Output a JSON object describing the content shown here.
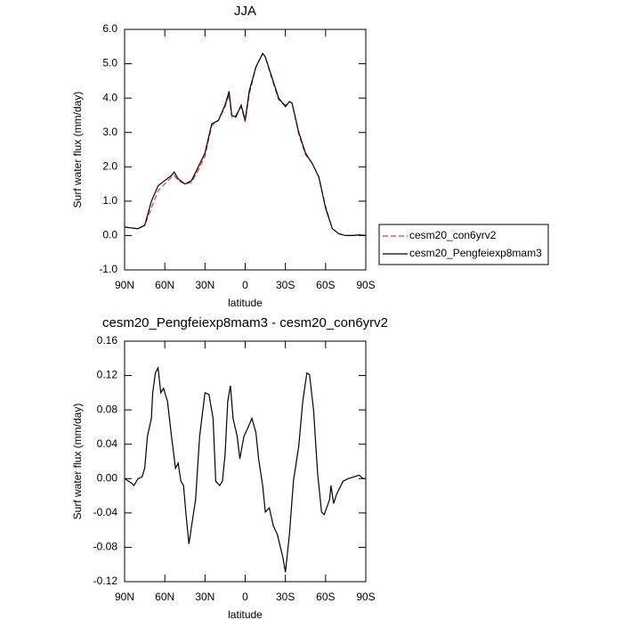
{
  "chart_data": [
    {
      "type": "line",
      "title": "JJA",
      "x_label": "latitude",
      "y_label": "Surf water flux (mm/day)",
      "xlim": [
        90,
        -90
      ],
      "ylim": [
        -1.0,
        6.0
      ],
      "xticks": [
        {
          "value": 90,
          "label": "90N"
        },
        {
          "value": 60,
          "label": "60N"
        },
        {
          "value": 30,
          "label": "30N"
        },
        0,
        {
          "value": -30,
          "label": "30S"
        },
        {
          "value": -60,
          "label": "60S"
        },
        {
          "value": -90,
          "label": "90S"
        }
      ],
      "yticks": [
        {
          "value": -1,
          "label": "-1.0"
        },
        {
          "value": 0,
          "label": "0.0"
        },
        {
          "value": 1,
          "label": "1.0"
        },
        {
          "value": 2,
          "label": "2.0"
        },
        {
          "value": 3,
          "label": "3.0"
        },
        {
          "value": 4,
          "label": "4.0"
        },
        {
          "value": 5,
          "label": "5.0"
        },
        {
          "value": 6,
          "label": "6.0"
        }
      ],
      "legend": "right",
      "x": [
        90,
        85,
        80,
        75,
        70,
        65,
        60,
        55,
        53,
        50,
        45,
        40,
        35,
        30,
        25,
        20,
        15,
        12,
        10,
        7,
        3,
        0,
        -3,
        -8,
        -13,
        -15,
        -20,
        -25,
        -30,
        -33,
        -35,
        -40,
        -45,
        -50,
        -55,
        -60,
        -65,
        -70,
        -75,
        -80,
        -85,
        -90
      ],
      "series": [
        {
          "name": "cesm20_con6yrv2",
          "color": "#e8373a",
          "style": "dashed",
          "values": [
            0.25,
            0.22,
            0.2,
            0.3,
            0.8,
            1.3,
            1.5,
            1.7,
            1.75,
            1.6,
            1.5,
            1.55,
            1.9,
            2.3,
            3.2,
            3.35,
            3.75,
            4.1,
            3.45,
            3.5,
            3.75,
            3.3,
            4.1,
            4.9,
            5.3,
            5.2,
            4.55,
            3.95,
            3.8,
            3.9,
            3.85,
            2.95,
            2.35,
            2.1,
            1.7,
            0.85,
            0.2,
            0.05,
            0.0,
            0.0,
            0.02,
            0.0
          ]
        },
        {
          "name": "cesm20_Pengfeiexp8mam3",
          "color": "#000000",
          "style": "solid",
          "values": [
            0.25,
            0.22,
            0.2,
            0.3,
            1.0,
            1.45,
            1.6,
            1.75,
            1.85,
            1.65,
            1.5,
            1.6,
            2.0,
            2.4,
            3.25,
            3.35,
            3.8,
            4.2,
            3.5,
            3.45,
            3.8,
            3.35,
            4.2,
            4.9,
            5.3,
            5.2,
            4.6,
            4.0,
            3.75,
            3.9,
            3.85,
            3.0,
            2.4,
            2.1,
            1.7,
            0.8,
            0.2,
            0.05,
            0.0,
            0.0,
            0.02,
            0.0
          ]
        }
      ]
    },
    {
      "type": "line",
      "title": "cesm20_Pengfeiexp8mam3 - cesm20_con6yrv2",
      "x_label": "latitude",
      "y_label": "Surf water flux (mm/day)",
      "xlim": [
        90,
        -90
      ],
      "ylim": [
        -0.12,
        0.16
      ],
      "xticks": [
        {
          "value": 90,
          "label": "90N"
        },
        {
          "value": 60,
          "label": "60N"
        },
        {
          "value": 30,
          "label": "30N"
        },
        0,
        {
          "value": -30,
          "label": "30S"
        },
        {
          "value": -60,
          "label": "60S"
        },
        {
          "value": -90,
          "label": "90S"
        }
      ],
      "yticks": [
        -0.12,
        -0.08,
        -0.04,
        {
          "value": 0,
          "label": "0.00"
        },
        0.04,
        0.08,
        0.12,
        0.16
      ],
      "color": "#000000",
      "x": [
        90,
        85,
        83,
        80,
        77,
        75,
        73,
        70,
        69,
        67,
        65,
        63,
        61,
        58,
        55,
        52,
        50,
        48,
        46,
        44,
        42,
        40,
        37,
        34,
        30,
        27,
        24,
        22,
        19,
        17,
        15,
        13,
        11,
        9,
        6,
        4,
        1,
        -2,
        -5,
        -8,
        -10,
        -13,
        -15,
        -18,
        -21,
        -24,
        -28,
        -30,
        -33,
        -36,
        -40,
        -43,
        -46,
        -48,
        -51,
        -54,
        -57,
        -59,
        -63,
        -64,
        -66,
        -68,
        -73,
        -77,
        -81,
        -85,
        -88,
        -90
      ],
      "values": [
        0.0,
        -0.005,
        -0.008,
        0.0,
        0.002,
        0.012,
        0.049,
        0.07,
        0.1,
        0.123,
        0.129,
        0.1,
        0.105,
        0.09,
        0.049,
        0.012,
        0.018,
        -0.003,
        -0.008,
        -0.045,
        -0.076,
        -0.055,
        -0.024,
        0.049,
        0.1,
        0.098,
        0.07,
        -0.003,
        -0.008,
        -0.003,
        0.028,
        0.09,
        0.108,
        0.07,
        0.049,
        0.023,
        0.049,
        0.059,
        0.07,
        0.054,
        0.023,
        -0.008,
        -0.039,
        -0.034,
        -0.055,
        -0.065,
        -0.091,
        -0.109,
        -0.065,
        -0.003,
        0.038,
        0.09,
        0.123,
        0.121,
        0.08,
        0.007,
        -0.039,
        -0.042,
        -0.024,
        -0.008,
        -0.029,
        -0.019,
        -0.003,
        0.0,
        0.002,
        0.004,
        0.0,
        0.0
      ]
    }
  ]
}
